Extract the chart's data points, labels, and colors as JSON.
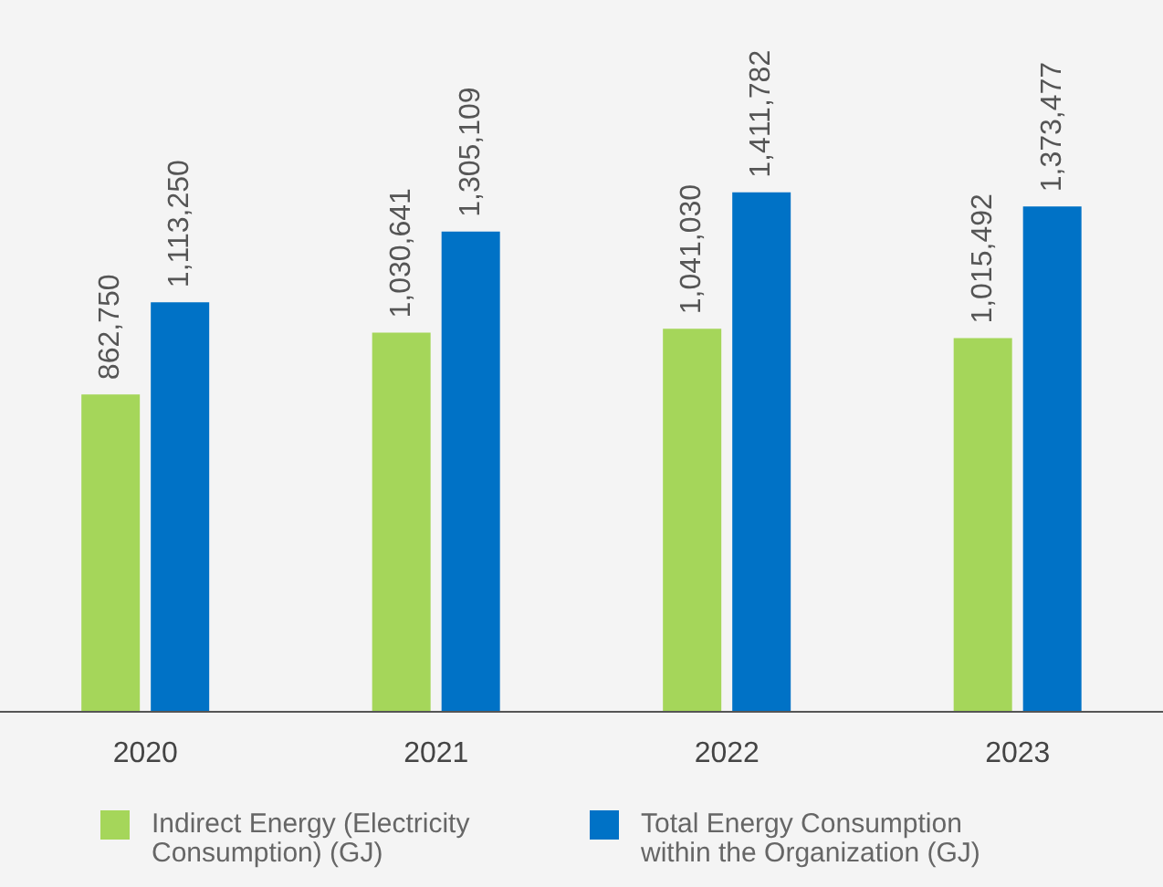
{
  "chart_data": {
    "type": "bar",
    "categories": [
      "2020",
      "2021",
      "2022",
      "2023"
    ],
    "series": [
      {
        "name": "Indirect Energy (Electricity Consumption) (GJ)",
        "color": "#a5d65a",
        "values": [
          862750,
          1030641,
          1041030,
          1015492
        ],
        "value_labels": [
          "862,750",
          "1,030,641",
          "1,041,030",
          "1,015,492"
        ]
      },
      {
        "name": "Total Energy Consumption within the Organization (GJ)",
        "color": "#0072c6",
        "values": [
          1113250,
          1305109,
          1411782,
          1373477
        ],
        "value_labels": [
          "1,113,250",
          "1,305,109",
          "1,411,782",
          "1,373,477"
        ]
      }
    ],
    "legend": "bottom",
    "grid": false,
    "tick_labels": "x"
  }
}
